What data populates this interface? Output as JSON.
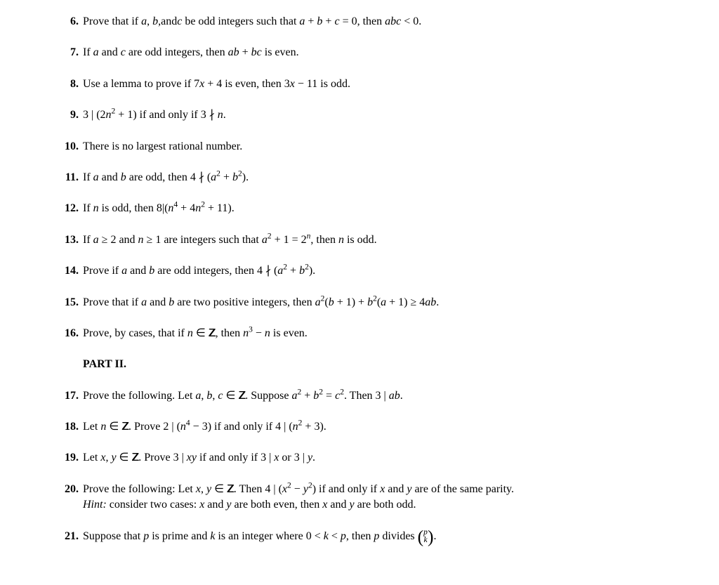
{
  "text_color": "#000000",
  "background_color": "#ffffff",
  "font_family": "Computer Modern, Georgia, Times New Roman, serif",
  "font_size_pt": 12,
  "problems": [
    {
      "number": "6.",
      "text_parts": [
        "Prove that if ",
        "a, b,",
        "and",
        "c",
        " be odd integers such that ",
        "a + b + c = 0",
        ", then ",
        "abc < 0",
        "."
      ]
    },
    {
      "number": "7.",
      "text_parts": [
        "If ",
        "a",
        " and ",
        "c",
        " are odd integers, then ",
        "ab + bc",
        " is even."
      ]
    },
    {
      "number": "8.",
      "text_parts": [
        "Use a lemma to prove if ",
        "7x + 4",
        " is even, then ",
        "3x − 11",
        " is odd."
      ]
    },
    {
      "number": "9.",
      "text_parts": [
        "3 | (2n² + 1)",
        " if and only if ",
        "3 ∤ n",
        "."
      ]
    },
    {
      "number": "10.",
      "text_parts": [
        "There is no largest rational number."
      ]
    },
    {
      "number": "11.",
      "text_parts": [
        "If ",
        "a",
        " and ",
        "b",
        " are odd, then ",
        "4 ∤ (a² + b²)",
        "."
      ]
    },
    {
      "number": "12.",
      "text_parts": [
        "If ",
        "n",
        " is odd, then ",
        "8|(n⁴ + 4n² + 11)",
        "."
      ]
    },
    {
      "number": "13.",
      "text_parts": [
        "If ",
        "a ≥ 2",
        " and ",
        "n ≥ 1",
        " are integers such that ",
        "a² + 1 = 2ⁿ",
        ", then ",
        "n",
        " is odd."
      ]
    },
    {
      "number": "14.",
      "text_parts": [
        "Prove if ",
        "a",
        " and ",
        "b",
        " are odd integers, then ",
        "4 ∤ (a² + b²)",
        "."
      ]
    },
    {
      "number": "15.",
      "text_parts": [
        "Prove that if ",
        "a",
        " and ",
        "b",
        " are two positive integers, then ",
        "a²(b + 1) + b²(a + 1) ≥ 4ab",
        "."
      ]
    },
    {
      "number": "16.",
      "text_parts": [
        "Prove, by cases, that if ",
        "n ∈ ℤ",
        ", then ",
        "n³ − n",
        " is even."
      ]
    }
  ],
  "part_header": "PART II.",
  "problems_part2": [
    {
      "number": "17.",
      "text_parts": [
        "Prove the following. Let ",
        "a, b, c ∈ ℤ",
        ". Suppose ",
        "a² + b² = c²",
        ". Then ",
        "3 | ab",
        "."
      ]
    },
    {
      "number": "18.",
      "text_parts": [
        "Let ",
        "n ∈ ℤ",
        ". Prove ",
        "2 | (n⁴ − 3)",
        " if and only if ",
        "4 | (n² + 3)",
        "."
      ]
    },
    {
      "number": "19.",
      "text_parts": [
        "Let ",
        "x, y ∈ ℤ",
        ". Prove ",
        "3 | xy",
        " if and only if ",
        "3 | x",
        " or ",
        "3 | y",
        "."
      ]
    },
    {
      "number": "20.",
      "text_parts": [
        "Prove the following: Let ",
        "x, y ∈ ℤ",
        ". Then ",
        "4 | (x² − y²)",
        " if and only if ",
        "x",
        " and ",
        "y",
        " are of the same parity."
      ],
      "hint_label": "Hint:",
      "hint_text": " consider two cases: x and y are both even, then x and y are both odd."
    },
    {
      "number": "21.",
      "text_parts": [
        "Suppose that ",
        "p",
        " is prime and ",
        "k",
        " is an integer where ",
        "0 < k < p",
        ", then ",
        "p",
        " divides "
      ],
      "binom_top": "p",
      "binom_bottom": "k"
    }
  ]
}
